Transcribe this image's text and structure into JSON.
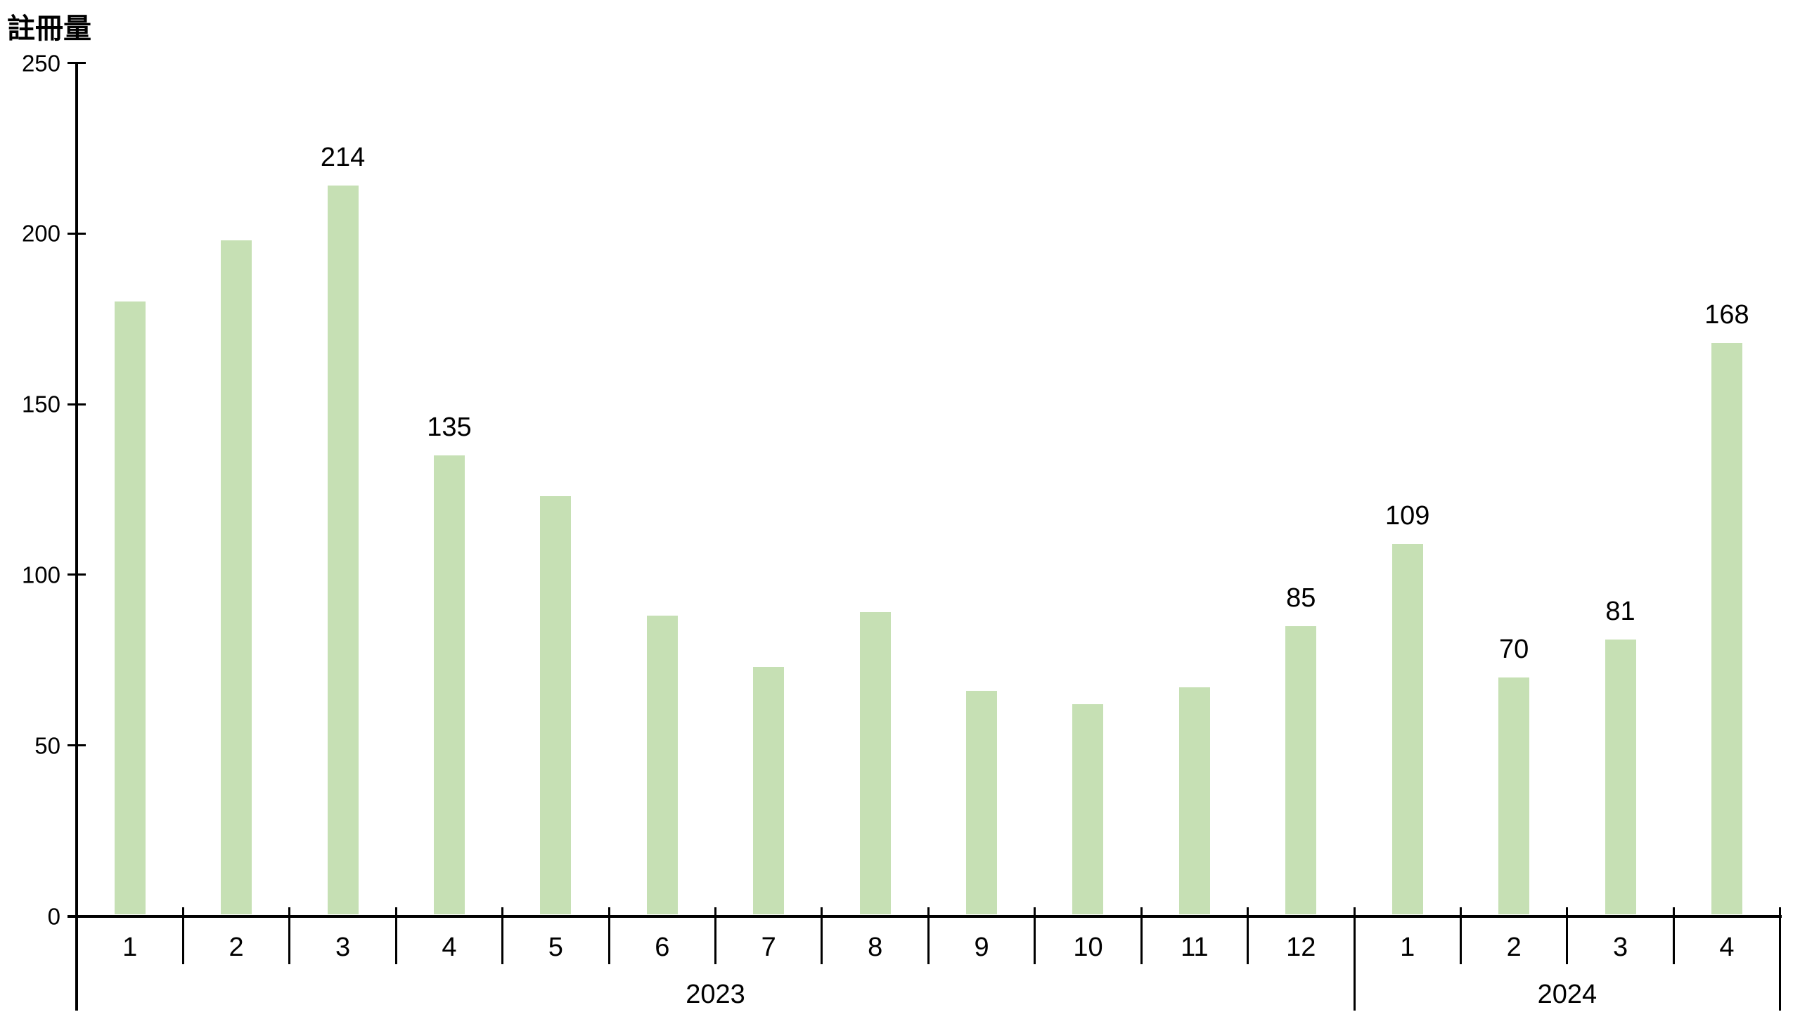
{
  "title": "註冊量",
  "chart_data": {
    "type": "bar",
    "title": "註冊量",
    "ylabel": "註冊量",
    "xlabel": "",
    "ylim": [
      0,
      250
    ],
    "yticks": [
      "0",
      "50",
      "100",
      "150",
      "200",
      "250"
    ],
    "grid": false,
    "legend": "none",
    "bar_color": "#c6e0b4",
    "axis_color": "#000000",
    "text_color": "#000000",
    "categories": [
      "1",
      "2",
      "3",
      "4",
      "5",
      "6",
      "7",
      "8",
      "9",
      "10",
      "11",
      "12",
      "1",
      "2",
      "3",
      "4"
    ],
    "values": [
      180,
      198,
      214,
      135,
      123,
      88,
      73,
      89,
      66,
      62,
      67,
      85,
      109,
      70,
      81,
      168
    ],
    "data_labels": [
      null,
      null,
      "214",
      "135",
      null,
      null,
      null,
      null,
      null,
      null,
      null,
      "85",
      "109",
      "70",
      "81",
      "168"
    ],
    "year_groups": [
      {
        "label": "2023",
        "span": 12
      },
      {
        "label": "2024",
        "span": 4
      }
    ]
  }
}
